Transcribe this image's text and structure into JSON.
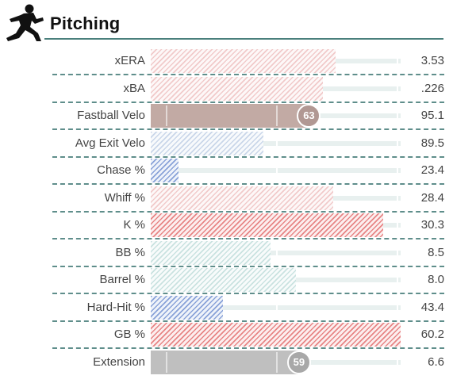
{
  "section": {
    "title": "Pitching",
    "icon": "pitcher-icon"
  },
  "colors": {
    "accent": "#4a7f7c",
    "hatch_light_red": "#f2caca",
    "hatch_mid_red": "#e9a3a3",
    "hatch_red": "#e78585",
    "hatch_teal": "#c9e3e0",
    "hatch_blue_light": "#c9d6ea",
    "hatch_blue": "#8aa2d8",
    "solid_brown": "#c2aaa4",
    "solid_gray": "#bfbfbf",
    "badge_brown": "#b19893",
    "badge_gray": "#a8a8a8"
  },
  "rows": [
    {
      "label": "xERA",
      "value": "3.53",
      "percentile": 74,
      "style": "hatch",
      "color": "hatch_light_red"
    },
    {
      "label": "xBA",
      "value": ".226",
      "percentile": 69,
      "style": "hatch",
      "color": "hatch_light_red"
    },
    {
      "label": "Fastball Velo",
      "value": "95.1",
      "percentile": 63,
      "style": "solid",
      "color": "solid_brown",
      "badge": "63",
      "badge_color": "badge_brown"
    },
    {
      "label": "Avg Exit Velo",
      "value": "89.5",
      "percentile": 45,
      "style": "hatch",
      "color": "hatch_blue_light"
    },
    {
      "label": "Chase %",
      "value": "23.4",
      "percentile": 11,
      "style": "hatch",
      "color": "hatch_blue"
    },
    {
      "label": "Whiff %",
      "value": "28.4",
      "percentile": 73,
      "style": "hatch",
      "color": "hatch_light_red"
    },
    {
      "label": "K %",
      "value": "30.3",
      "percentile": 93,
      "style": "hatch",
      "color": "hatch_red"
    },
    {
      "label": "BB %",
      "value": "8.5",
      "percentile": 48,
      "style": "hatch",
      "color": "hatch_teal"
    },
    {
      "label": "Barrel %",
      "value": "8.0",
      "percentile": 58,
      "style": "hatch",
      "color": "hatch_teal"
    },
    {
      "label": "Hard-Hit %",
      "value": "43.4",
      "percentile": 29,
      "style": "hatch",
      "color": "hatch_blue"
    },
    {
      "label": "GB %",
      "value": "60.2",
      "percentile": 100,
      "style": "hatch",
      "color": "hatch_red"
    },
    {
      "label": "Extension",
      "value": "6.6",
      "percentile": 59,
      "style": "solid",
      "color": "solid_gray",
      "badge": "59",
      "badge_color": "badge_gray"
    }
  ]
}
